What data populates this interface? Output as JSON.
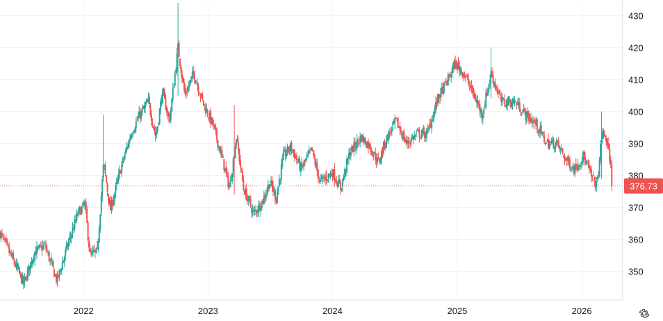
{
  "chart_data": {
    "type": "candlestick",
    "title": "",
    "xlabel": "",
    "ylabel": "",
    "ylim": [
      341,
      434
    ],
    "xlim": [
      "2021-05-01",
      "2026-05-01"
    ],
    "y_ticks": [
      350,
      360,
      370,
      380,
      390,
      400,
      410,
      420,
      430
    ],
    "x_ticks": [
      {
        "label": "2022",
        "date": "2022-01-01"
      },
      {
        "label": "2023",
        "date": "2023-01-01"
      },
      {
        "label": "2024",
        "date": "2024-01-01"
      },
      {
        "label": "2025",
        "date": "2025-01-01"
      },
      {
        "label": "2026",
        "date": "2026-01-01"
      }
    ],
    "grid": true,
    "last_price": 376.73,
    "last_price_label": "376.73",
    "colors": {
      "up": "#26a69a",
      "down": "#ef5350",
      "grid": "#f0f3fa",
      "axis_text": "#131722",
      "axis_line": "#d6dce5"
    },
    "close_path": [
      [
        "2021-05-01",
        362
      ],
      [
        "2021-06-15",
        352
      ],
      [
        "2021-07-10",
        346
      ],
      [
        "2021-08-10",
        356
      ],
      [
        "2021-09-10",
        358
      ],
      [
        "2021-10-15",
        347
      ],
      [
        "2021-11-15",
        358
      ],
      [
        "2021-12-15",
        368
      ],
      [
        "2022-01-05",
        371
      ],
      [
        "2022-01-20",
        355
      ],
      [
        "2022-02-10",
        356
      ],
      [
        "2022-03-01",
        384
      ],
      [
        "2022-03-20",
        369
      ],
      [
        "2022-04-20",
        382
      ],
      [
        "2022-05-20",
        393
      ],
      [
        "2022-06-10",
        398
      ],
      [
        "2022-07-10",
        403
      ],
      [
        "2022-08-01",
        392
      ],
      [
        "2022-08-20",
        406
      ],
      [
        "2022-09-10",
        397
      ],
      [
        "2022-10-05",
        420
      ],
      [
        "2022-10-25",
        405
      ],
      [
        "2022-11-20",
        412
      ],
      [
        "2022-12-20",
        402
      ],
      [
        "2023-01-15",
        396
      ],
      [
        "2023-02-10",
        386
      ],
      [
        "2023-03-05",
        376
      ],
      [
        "2023-03-25",
        392
      ],
      [
        "2023-04-15",
        376
      ],
      [
        "2023-05-15",
        368
      ],
      [
        "2023-06-10",
        372
      ],
      [
        "2023-07-01",
        378
      ],
      [
        "2023-07-20",
        373
      ],
      [
        "2023-08-10",
        386
      ],
      [
        "2023-09-01",
        389
      ],
      [
        "2023-10-01",
        382
      ],
      [
        "2023-11-01",
        388
      ],
      [
        "2023-11-25",
        378
      ],
      [
        "2024-01-01",
        381
      ],
      [
        "2024-01-25",
        376
      ],
      [
        "2024-02-20",
        387
      ],
      [
        "2024-03-25",
        392
      ],
      [
        "2024-04-20",
        389
      ],
      [
        "2024-05-15",
        384
      ],
      [
        "2024-06-05",
        391
      ],
      [
        "2024-07-05",
        397
      ],
      [
        "2024-08-05",
        390
      ],
      [
        "2024-09-05",
        393
      ],
      [
        "2024-10-05",
        393
      ],
      [
        "2024-11-05",
        404
      ],
      [
        "2024-12-05",
        410
      ],
      [
        "2024-12-25",
        415
      ],
      [
        "2025-01-20",
        412
      ],
      [
        "2025-02-15",
        406
      ],
      [
        "2025-03-15",
        399
      ],
      [
        "2025-04-10",
        412
      ],
      [
        "2025-05-10",
        403
      ],
      [
        "2025-06-20",
        403
      ],
      [
        "2025-07-20",
        399
      ],
      [
        "2025-08-20",
        396
      ],
      [
        "2025-09-20",
        390
      ],
      [
        "2025-10-20",
        390
      ],
      [
        "2025-11-15",
        385
      ],
      [
        "2025-12-10",
        382
      ],
      [
        "2026-01-05",
        386
      ],
      [
        "2026-02-01",
        379
      ],
      [
        "2026-02-15",
        377
      ],
      [
        "2026-03-01",
        393
      ],
      [
        "2026-03-12",
        392
      ],
      [
        "2026-03-25",
        385
      ],
      [
        "2026-04-01",
        376.73
      ]
    ],
    "spikes": [
      [
        "2022-03-01",
        399,
        378
      ],
      [
        "2022-10-05",
        434,
        405
      ],
      [
        "2023-03-20",
        402,
        374
      ],
      [
        "2025-04-10",
        420,
        404
      ],
      [
        "2026-03-01",
        400,
        379
      ]
    ]
  },
  "icons": {
    "settings": "gear-icon"
  }
}
